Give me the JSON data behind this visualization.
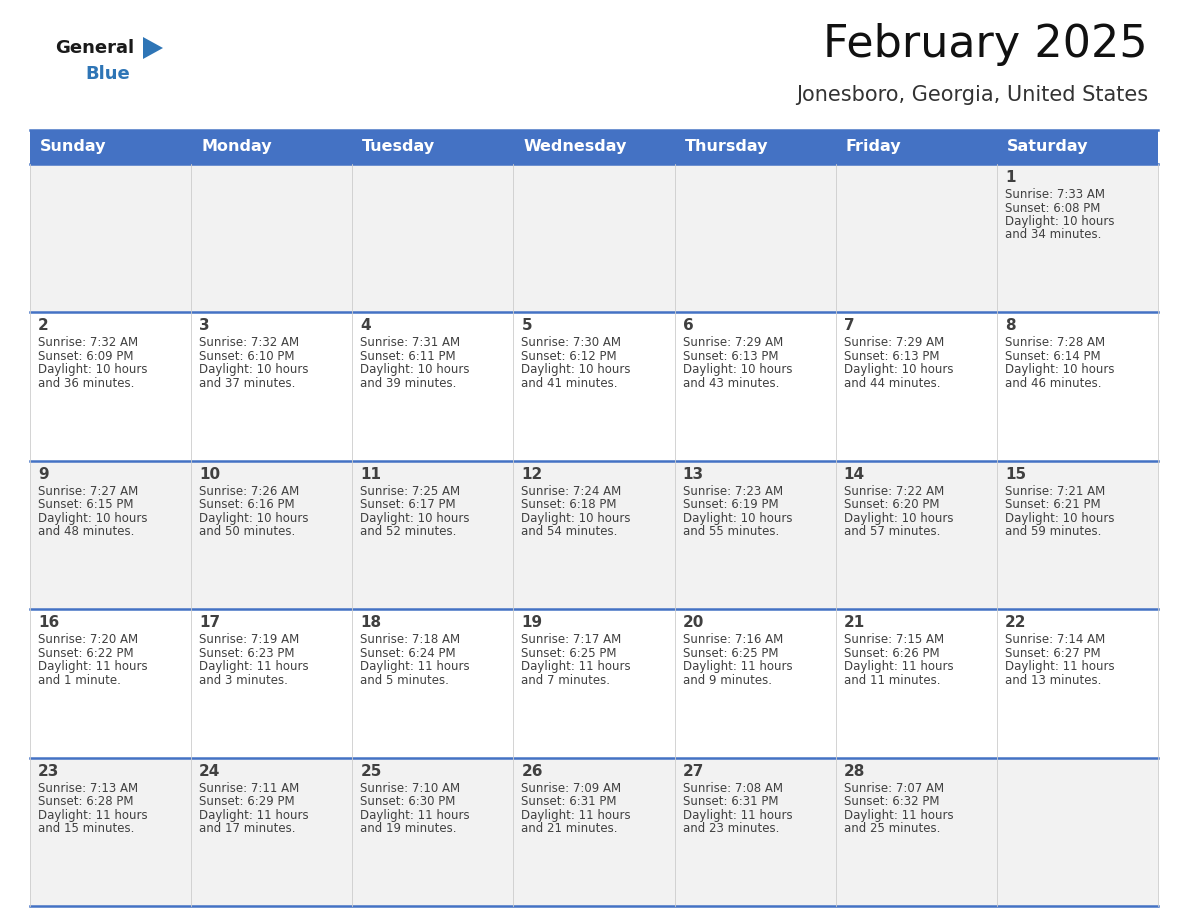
{
  "title": "February 2025",
  "subtitle": "Jonesboro, Georgia, United States",
  "header_bg": "#4472C4",
  "header_text_color": "#FFFFFF",
  "day_names": [
    "Sunday",
    "Monday",
    "Tuesday",
    "Wednesday",
    "Thursday",
    "Friday",
    "Saturday"
  ],
  "row_bg_even": "#F2F2F2",
  "row_bg_odd": "#FFFFFF",
  "border_color": "#4472C4",
  "cell_text_color": "#404040",
  "num_color": "#404040",
  "calendar_data": [
    [
      null,
      null,
      null,
      null,
      null,
      null,
      {
        "day": "1",
        "sunrise": "7:33 AM",
        "sunset": "6:08 PM",
        "daylight": "10 hours\nand 34 minutes."
      }
    ],
    [
      {
        "day": "2",
        "sunrise": "7:32 AM",
        "sunset": "6:09 PM",
        "daylight": "10 hours\nand 36 minutes."
      },
      {
        "day": "3",
        "sunrise": "7:32 AM",
        "sunset": "6:10 PM",
        "daylight": "10 hours\nand 37 minutes."
      },
      {
        "day": "4",
        "sunrise": "7:31 AM",
        "sunset": "6:11 PM",
        "daylight": "10 hours\nand 39 minutes."
      },
      {
        "day": "5",
        "sunrise": "7:30 AM",
        "sunset": "6:12 PM",
        "daylight": "10 hours\nand 41 minutes."
      },
      {
        "day": "6",
        "sunrise": "7:29 AM",
        "sunset": "6:13 PM",
        "daylight": "10 hours\nand 43 minutes."
      },
      {
        "day": "7",
        "sunrise": "7:29 AM",
        "sunset": "6:13 PM",
        "daylight": "10 hours\nand 44 minutes."
      },
      {
        "day": "8",
        "sunrise": "7:28 AM",
        "sunset": "6:14 PM",
        "daylight": "10 hours\nand 46 minutes."
      }
    ],
    [
      {
        "day": "9",
        "sunrise": "7:27 AM",
        "sunset": "6:15 PM",
        "daylight": "10 hours\nand 48 minutes."
      },
      {
        "day": "10",
        "sunrise": "7:26 AM",
        "sunset": "6:16 PM",
        "daylight": "10 hours\nand 50 minutes."
      },
      {
        "day": "11",
        "sunrise": "7:25 AM",
        "sunset": "6:17 PM",
        "daylight": "10 hours\nand 52 minutes."
      },
      {
        "day": "12",
        "sunrise": "7:24 AM",
        "sunset": "6:18 PM",
        "daylight": "10 hours\nand 54 minutes."
      },
      {
        "day": "13",
        "sunrise": "7:23 AM",
        "sunset": "6:19 PM",
        "daylight": "10 hours\nand 55 minutes."
      },
      {
        "day": "14",
        "sunrise": "7:22 AM",
        "sunset": "6:20 PM",
        "daylight": "10 hours\nand 57 minutes."
      },
      {
        "day": "15",
        "sunrise": "7:21 AM",
        "sunset": "6:21 PM",
        "daylight": "10 hours\nand 59 minutes."
      }
    ],
    [
      {
        "day": "16",
        "sunrise": "7:20 AM",
        "sunset": "6:22 PM",
        "daylight": "11 hours\nand 1 minute."
      },
      {
        "day": "17",
        "sunrise": "7:19 AM",
        "sunset": "6:23 PM",
        "daylight": "11 hours\nand 3 minutes."
      },
      {
        "day": "18",
        "sunrise": "7:18 AM",
        "sunset": "6:24 PM",
        "daylight": "11 hours\nand 5 minutes."
      },
      {
        "day": "19",
        "sunrise": "7:17 AM",
        "sunset": "6:25 PM",
        "daylight": "11 hours\nand 7 minutes."
      },
      {
        "day": "20",
        "sunrise": "7:16 AM",
        "sunset": "6:25 PM",
        "daylight": "11 hours\nand 9 minutes."
      },
      {
        "day": "21",
        "sunrise": "7:15 AM",
        "sunset": "6:26 PM",
        "daylight": "11 hours\nand 11 minutes."
      },
      {
        "day": "22",
        "sunrise": "7:14 AM",
        "sunset": "6:27 PM",
        "daylight": "11 hours\nand 13 minutes."
      }
    ],
    [
      {
        "day": "23",
        "sunrise": "7:13 AM",
        "sunset": "6:28 PM",
        "daylight": "11 hours\nand 15 minutes."
      },
      {
        "day": "24",
        "sunrise": "7:11 AM",
        "sunset": "6:29 PM",
        "daylight": "11 hours\nand 17 minutes."
      },
      {
        "day": "25",
        "sunrise": "7:10 AM",
        "sunset": "6:30 PM",
        "daylight": "11 hours\nand 19 minutes."
      },
      {
        "day": "26",
        "sunrise": "7:09 AM",
        "sunset": "6:31 PM",
        "daylight": "11 hours\nand 21 minutes."
      },
      {
        "day": "27",
        "sunrise": "7:08 AM",
        "sunset": "6:31 PM",
        "daylight": "11 hours\nand 23 minutes."
      },
      {
        "day": "28",
        "sunrise": "7:07 AM",
        "sunset": "6:32 PM",
        "daylight": "11 hours\nand 25 minutes."
      },
      null
    ]
  ],
  "logo_general_color": "#1a1a1a",
  "logo_blue_color": "#2E75B6",
  "title_fontsize": 32,
  "subtitle_fontsize": 15,
  "header_fontsize": 11.5,
  "day_num_fontsize": 11,
  "cell_text_fontsize": 8.5
}
